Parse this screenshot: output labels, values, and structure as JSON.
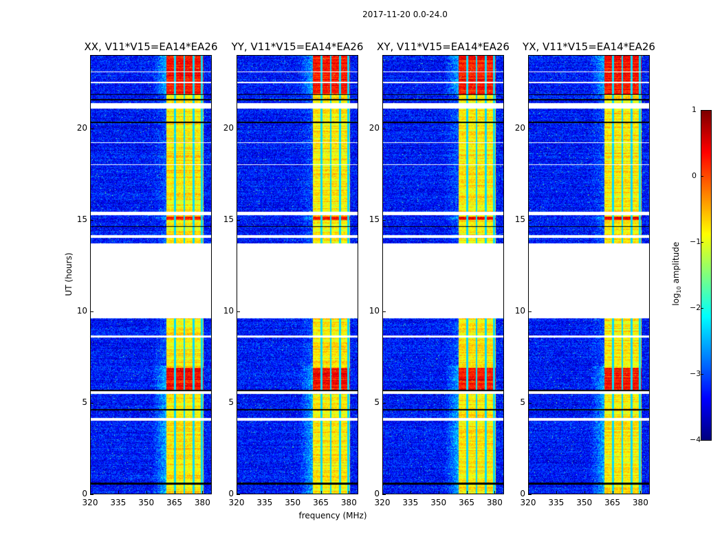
{
  "chart_data": {
    "type": "heatmap",
    "title": "2017-11-20 0.0-24.0",
    "xlabel": "frequency (MHz)",
    "ylabel": "UT (hours)",
    "xlim": [
      320,
      385
    ],
    "ylim": [
      0,
      24
    ],
    "xticks": [
      "320",
      "335",
      "350",
      "365",
      "380"
    ],
    "yticks": [
      "0",
      "5",
      "10",
      "15",
      "20"
    ],
    "panels": [
      {
        "title": "XX, V11*V15=EA14*EA26"
      },
      {
        "title": "YY, V11*V15=EA14*EA26"
      },
      {
        "title": "XY, V11*V15=EA14*EA26"
      },
      {
        "title": "YX, V11*V15=EA14*EA26"
      }
    ],
    "colorbar": {
      "label_main": "log",
      "label_sub": "10",
      "label_rest": " amplitude",
      "clim": [
        -4,
        1
      ],
      "ticks": [
        "1",
        "0",
        "−1",
        "−2",
        "−3",
        "−4"
      ],
      "colormap": "jet"
    },
    "background_level": -3.3,
    "rfi_band_mhz": [
      361,
      381
    ],
    "rfi_level": -0.8,
    "rfi_stripes_mhz": [
      365.5,
      370.5,
      375.5,
      380
    ],
    "strong_rfi_hours": [
      [
        5.7,
        6.9
      ],
      [
        21.9,
        24
      ],
      [
        15.0,
        15.2
      ]
    ],
    "no_data_hours": [
      [
        9.6,
        13.7
      ],
      [
        21.1,
        21.4
      ],
      [
        15.25,
        15.45
      ],
      [
        14.0,
        14.15
      ],
      [
        5.45,
        5.6
      ],
      [
        4.0,
        4.15
      ],
      [
        8.55,
        8.65
      ],
      [
        18.0,
        18.05
      ],
      [
        19.2,
        19.25
      ],
      [
        23.1,
        23.15
      ],
      [
        22.5,
        22.55
      ]
    ],
    "flag_hours": [
      [
        0.5,
        0.6
      ],
      [
        4.55,
        4.62
      ],
      [
        20.3,
        20.37
      ],
      [
        21.55,
        21.62
      ],
      [
        21.85,
        21.9
      ],
      [
        5.62,
        5.7
      ],
      [
        14.6,
        14.65
      ]
    ]
  }
}
